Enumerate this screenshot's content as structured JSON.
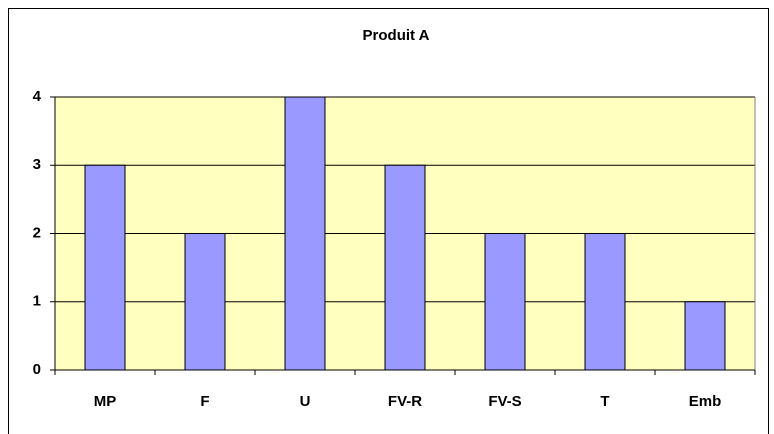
{
  "chart_data": {
    "type": "bar",
    "title": "Produit A",
    "categories": [
      "MP",
      "F",
      "U",
      "FV-R",
      "FV-S",
      "T",
      "Emb"
    ],
    "values": [
      3,
      2,
      4,
      3,
      2,
      2,
      1
    ],
    "color": "#9999ff",
    "ylim": [
      0,
      4
    ],
    "yticks": [
      0,
      1,
      2,
      3,
      4
    ],
    "grid": true,
    "background": "#ffffc0"
  }
}
